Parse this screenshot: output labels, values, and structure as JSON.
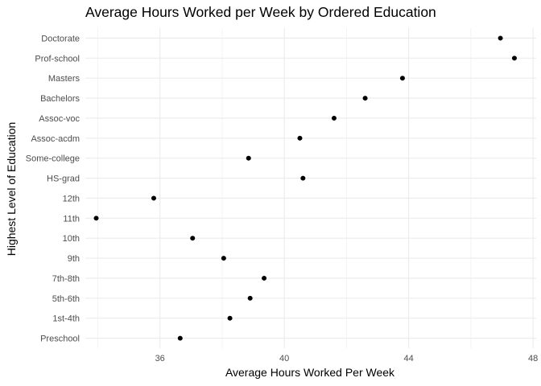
{
  "chart_data": {
    "type": "scatter",
    "title": "Average Hours Worked per Week by Ordered Education",
    "xlabel": "Average Hours Worked Per Week",
    "ylabel": "Highest Level of Education",
    "categories": [
      "Preschool",
      "1st-4th",
      "5th-6th",
      "7th-8th",
      "9th",
      "10th",
      "11th",
      "12th",
      "HS-grad",
      "Some-college",
      "Assoc-acdm",
      "Assoc-voc",
      "Bachelors",
      "Masters",
      "Prof-school",
      "Doctorate"
    ],
    "values": [
      36.65,
      38.25,
      38.9,
      39.35,
      38.05,
      37.05,
      33.95,
      35.8,
      40.6,
      38.85,
      40.5,
      41.6,
      42.6,
      43.8,
      47.4,
      46.95
    ],
    "xlim": [
      33.6,
      48.1
    ],
    "x_ticks": [
      36,
      40,
      44,
      48
    ],
    "x_tick_labels": [
      "36",
      "40",
      "44",
      "48"
    ],
    "grid": true,
    "point_color": "#000000",
    "grid_color": "#ebebeb",
    "background": "#ffffff"
  }
}
